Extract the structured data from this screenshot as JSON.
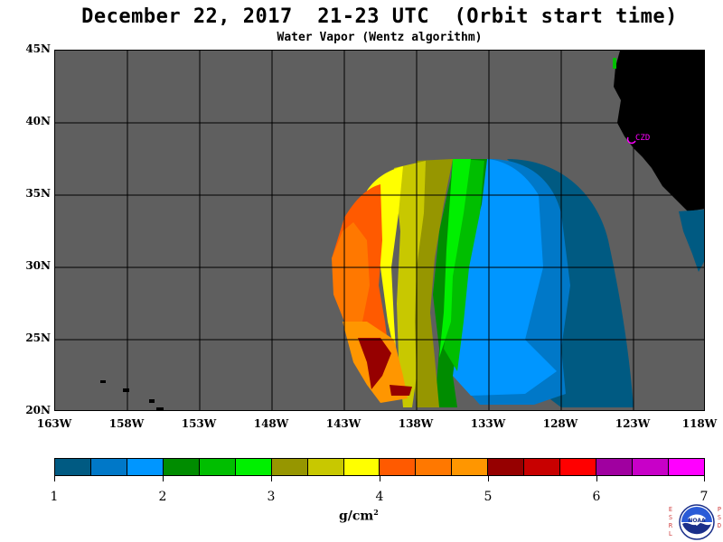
{
  "header": {
    "title": "December 22, 2017  21-23 UTC  (Orbit start time)",
    "subtitle": "Water Vapor (Wentz algorithm)"
  },
  "map": {
    "lat_labels": [
      "45N",
      "40N",
      "35N",
      "30N",
      "25N",
      "20N"
    ],
    "lon_labels": [
      "163W",
      "158W",
      "153W",
      "148W",
      "143W",
      "138W",
      "133W",
      "128W",
      "123W",
      "118W"
    ],
    "station_label": "CZD",
    "colors": {
      "ocean_no_data": "#5f5f5f",
      "land": "#000000",
      "grid": "#000000",
      "station": "#ff00ff"
    }
  },
  "colorbar": {
    "colors": [
      "#005a82",
      "#0078c8",
      "#0096ff",
      "#008c00",
      "#00be00",
      "#00f000",
      "#969600",
      "#c8c800",
      "#ffff00",
      "#ff5a00",
      "#ff7800",
      "#ff9600",
      "#960000",
      "#c80000",
      "#ff0000",
      "#a000a0",
      "#c800c8",
      "#ff00ff"
    ],
    "tick_labels": [
      "1",
      "2",
      "3",
      "4",
      "5",
      "6",
      "7"
    ],
    "units": "g/cm",
    "units_exp": "2"
  },
  "logo": {
    "left_letters": [
      "E",
      "S",
      "R",
      "L"
    ],
    "right_letters": [
      "P",
      "S",
      "D"
    ],
    "center_text": "NOAA"
  }
}
